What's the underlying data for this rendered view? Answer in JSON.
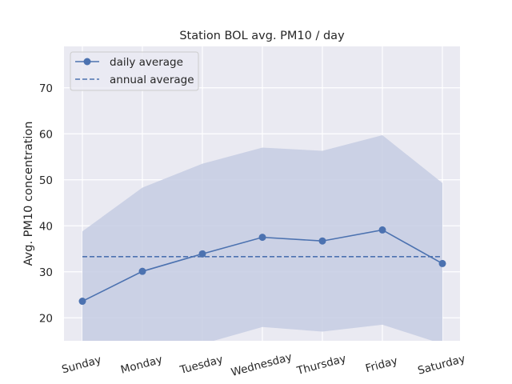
{
  "chart_data": {
    "type": "line",
    "title": "Station BOL avg. PM10 / day",
    "xlabel": "",
    "ylabel": "Avg. PM10 concentration",
    "categories": [
      "Sunday",
      "Monday",
      "Tuesday",
      "Wednesday",
      "Thursday",
      "Friday",
      "Saturday"
    ],
    "ylim": [
      15,
      79
    ],
    "yticks": [
      20,
      30,
      40,
      50,
      60,
      70
    ],
    "grid": true,
    "legend_position": "top-left",
    "series": [
      {
        "name": "daily average",
        "values": [
          23.6,
          30.1,
          33.9,
          37.5,
          36.7,
          39.1,
          31.8
        ],
        "color": "#4c72b0",
        "marker": "circle"
      },
      {
        "name": "annual average",
        "values": [
          33.3,
          33.3,
          33.3,
          33.3,
          33.3,
          33.3,
          33.3
        ],
        "color": "#4c72b0",
        "linestyle": "dashed"
      }
    ],
    "band": {
      "upper": [
        38.8,
        48.3,
        53.5,
        57.0,
        56.3,
        59.7,
        49.3
      ],
      "lower": [
        8.4,
        11.9,
        14.3,
        18.0,
        17.0,
        18.5,
        14.3
      ],
      "color": "#4c72b0"
    },
    "colors": {
      "plot_bg": "#eaeaf2",
      "grid": "#ffffff",
      "band_fill": "#c5cde3"
    }
  }
}
